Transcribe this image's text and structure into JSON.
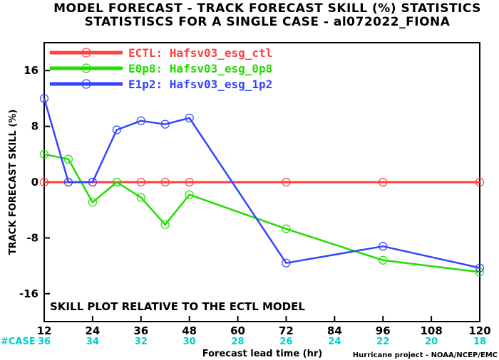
{
  "chart_data": {
    "type": "line",
    "title": "MODEL FORECAST - TRACK FORECAST SKILL (%) STATISTICS",
    "subtitle": "STATISTISCS FOR A SINGLE CASE - al072022_FIONA",
    "xlabel": "Forecast lead time (hr)",
    "ylabel": "TRACK FORECAST SKILL (%)",
    "xlim": [
      12,
      120
    ],
    "ylim": [
      -20,
      20
    ],
    "x_ticks": [
      12,
      24,
      36,
      48,
      60,
      72,
      84,
      96,
      108,
      120
    ],
    "y_ticks": [
      -16,
      -8,
      0,
      8,
      16
    ],
    "grid": false,
    "legend_position": "top-left",
    "annotation": "SKILL PLOT RELATIVE TO THE ECTL MODEL",
    "credit": "Hurricane project - NOAA/NCEP/EMC",
    "case_label": "#CASE",
    "case_counts": [
      {
        "x": 12,
        "n": "36"
      },
      {
        "x": 24,
        "n": "34"
      },
      {
        "x": 36,
        "n": "32"
      },
      {
        "x": 48,
        "n": "30"
      },
      {
        "x": 60,
        "n": "28"
      },
      {
        "x": 72,
        "n": "26"
      },
      {
        "x": 84,
        "n": "24"
      },
      {
        "x": 96,
        "n": "22"
      },
      {
        "x": 108,
        "n": "20"
      },
      {
        "x": 120,
        "n": "18"
      }
    ],
    "series": [
      {
        "name": "ECTL: Hafsv03_esg_ctl",
        "color": "#ff4040",
        "x": [
          12,
          18,
          24,
          30,
          36,
          42,
          48,
          72,
          96,
          120
        ],
        "y": [
          0,
          0,
          0,
          0,
          0,
          0,
          0,
          0,
          0,
          0
        ]
      },
      {
        "name": "E0p8: Hafsv03_esg_0p8",
        "color": "#22dd00",
        "x": [
          12,
          18,
          24,
          30,
          36,
          42,
          48,
          72,
          96,
          120
        ],
        "y": [
          4.0,
          3.3,
          -2.9,
          0.0,
          -2.2,
          -6.1,
          -1.8,
          -6.7,
          -11.2,
          -12.9
        ]
      },
      {
        "name": "E1p2: Hafsv03_esg_1p2",
        "color": "#3344ff",
        "x": [
          12,
          18,
          24,
          30,
          36,
          42,
          48,
          72,
          96,
          120
        ],
        "y": [
          12.0,
          0.0,
          0.0,
          7.5,
          8.8,
          8.3,
          9.2,
          -11.6,
          -9.2,
          -12.3
        ]
      }
    ]
  }
}
